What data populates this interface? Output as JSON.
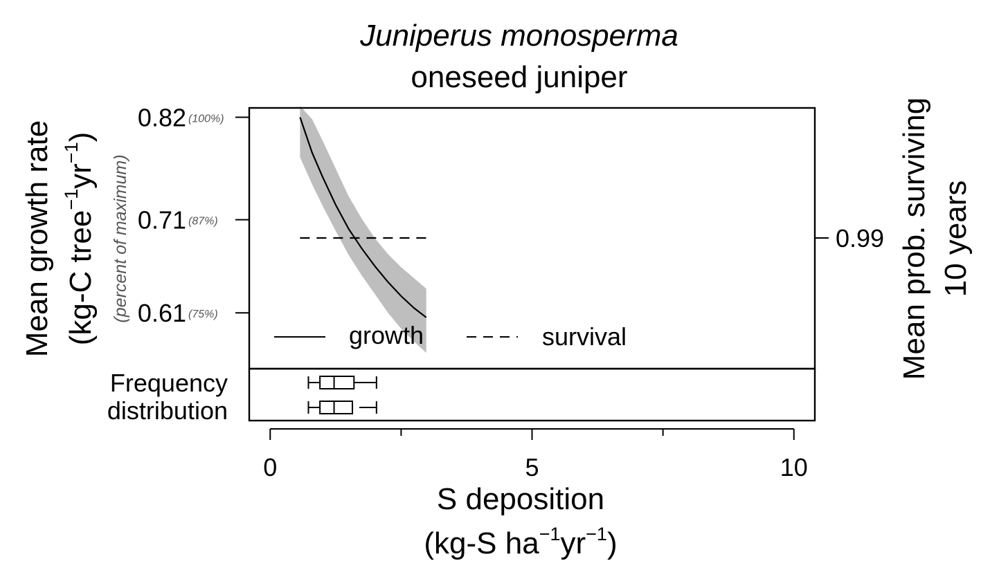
{
  "chart_data": {
    "type": "line",
    "title": "Juniperus monosperma",
    "subtitle": "oneseed juniper",
    "xlabel": "S deposition",
    "xlabel_units": [
      "(kg-S ha",
      "−1",
      "yr",
      "−1",
      ")"
    ],
    "ylabel": "Mean growth rate",
    "ylabel_units": [
      "(kg-C tree",
      "−1",
      "yr",
      "−1",
      ")"
    ],
    "ylabel_note": "(percent of maximum)",
    "y2label": [
      "Mean prob. surviving",
      "10 years"
    ],
    "xlim": [
      -0.4,
      10.4
    ],
    "xticks": [
      0,
      5,
      10
    ],
    "xminor": [
      2.5,
      7.5
    ],
    "ylim": [
      0.55,
      0.83
    ],
    "yticks": [
      {
        "value": 0.82,
        "label": "0.82",
        "pct": "(100%)"
      },
      {
        "value": 0.71,
        "label": "0.71",
        "pct": "(87%)"
      },
      {
        "value": 0.61,
        "label": "0.61",
        "pct": "(75%)"
      }
    ],
    "y2ticks": [
      {
        "value": 0.99,
        "label": "0.99"
      }
    ],
    "growth": {
      "name": "growth",
      "x": [
        0.57,
        0.8,
        1.0,
        1.25,
        1.5,
        1.75,
        2.0,
        2.25,
        2.5,
        2.75,
        2.98
      ],
      "y": [
        0.82,
        0.782,
        0.756,
        0.726,
        0.7,
        0.679,
        0.66,
        0.643,
        0.628,
        0.615,
        0.605
      ],
      "lower": [
        0.777,
        0.748,
        0.725,
        0.698,
        0.672,
        0.65,
        0.63,
        0.61,
        0.593,
        0.579,
        0.567
      ],
      "upper": [
        0.832,
        0.818,
        0.795,
        0.765,
        0.735,
        0.711,
        0.69,
        0.673,
        0.659,
        0.647,
        0.636
      ]
    },
    "survival": {
      "name": "survival",
      "x": [
        0.57,
        3.0
      ],
      "y": [
        0.99,
        0.99
      ]
    },
    "legend": {
      "position": "bottom-left",
      "entries": [
        "growth",
        "survival"
      ]
    },
    "freq_label": [
      "Frequency",
      "distribution"
    ],
    "boxplots": [
      {
        "name": "growth",
        "min": 0.73,
        "q1": 0.95,
        "median": 1.22,
        "q3": 1.6,
        "max": 2.03
      },
      {
        "name": "survival",
        "min": 0.73,
        "q1": 0.95,
        "median": 1.22,
        "q3": 1.57,
        "max": 2.03
      }
    ],
    "colors": {
      "band": "#bebebe",
      "line": "#000000",
      "pct_text": "#555555"
    }
  }
}
